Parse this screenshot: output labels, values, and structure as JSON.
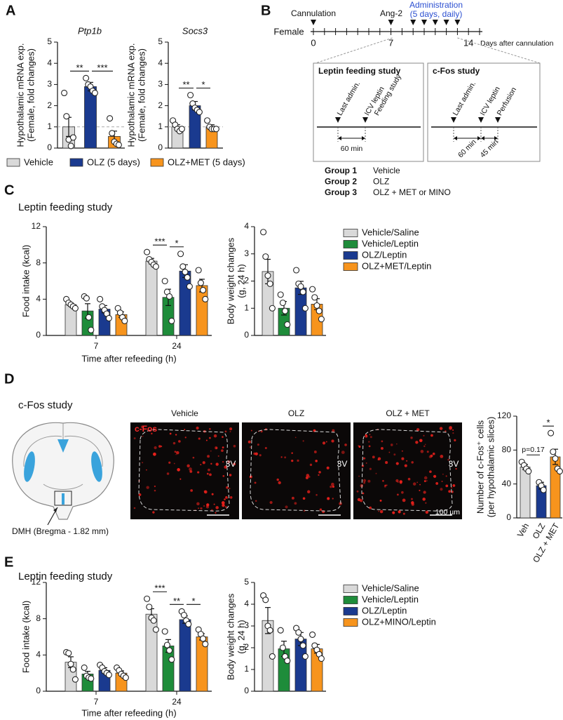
{
  "panel_labels": [
    "A",
    "B",
    "C",
    "D",
    "E"
  ],
  "panel_a": {
    "legend": [
      {
        "name": "Vehicle",
        "color": "#d9d9d9"
      },
      {
        "name": "OLZ (5 days)",
        "color": "#1a3a8f"
      },
      {
        "name": "OLZ+MET (5 days)",
        "color": "#f7941d"
      }
    ]
  },
  "panel_b": {
    "sex": "Female",
    "cannulation": "Cannulation",
    "ang2": "Ang-2",
    "administration": [
      "Administration",
      "(5 days, daily)"
    ],
    "day_labels": [
      "0",
      "7",
      "14"
    ],
    "day_axis": "Days after cannulation",
    "studies": [
      {
        "title": "Leptin feeding study",
        "events": [
          "Last admin.",
          "ICV leptin",
          "Feeding study"
        ],
        "intervals": [
          "60 min"
        ]
      },
      {
        "title": "c-Fos study",
        "events": [
          "Last admin.",
          "ICV leptin",
          "Perfusion"
        ],
        "intervals": [
          "60 min",
          "45 min"
        ]
      }
    ],
    "groups": [
      {
        "group": "Group 1",
        "treatment": "Vehicle"
      },
      {
        "group": "Group 2",
        "treatment": "OLZ"
      },
      {
        "group": "Group 3",
        "treatment": "OLZ + MET or MINO"
      }
    ]
  },
  "panel_c": {
    "title": "Leptin feeding study"
  },
  "panel_d": {
    "title": "c-Fos study",
    "region": "DMH (Bregma - 1.82 mm)",
    "images": [
      {
        "title": "Vehicle",
        "landmark": "3V"
      },
      {
        "title": "OLZ",
        "landmark": "3V"
      },
      {
        "title": "OLZ + MET",
        "landmark": "3V"
      }
    ],
    "stain": "c-Fos",
    "scale": "100 µm"
  },
  "panel_e": {
    "title": "Leptin feeding study"
  },
  "chart_data": [
    {
      "type": "bar",
      "title": "Ptp1b",
      "ylabel": [
        "Hypothalamic mRNA exp.",
        "(Female, fold changes)"
      ],
      "values": [
        1.0,
        2.9,
        0.55
      ],
      "errors": [
        0.45,
        0.2,
        0.25
      ],
      "points": [
        [
          2.6,
          1.5,
          0.4,
          0.1,
          0.5
        ],
        [
          3.3,
          3.0,
          2.9,
          2.7,
          2.6
        ],
        [
          1.4,
          0.7,
          0.3,
          0.2,
          0.15
        ]
      ],
      "colors": [
        "#d9d9d9",
        "#1a3a8f",
        "#f7941d"
      ],
      "ylim": [
        0,
        5
      ],
      "yticks": [
        0,
        1,
        2,
        3,
        4,
        5
      ],
      "reference": 1,
      "significance": [
        {
          "text": "**",
          "pair": [
            0,
            1
          ]
        },
        {
          "text": "***",
          "pair": [
            1,
            2
          ]
        }
      ]
    },
    {
      "type": "bar",
      "title": "Socs3",
      "ylabel": [
        "Hypothalamic mRNA exp.",
        "(Female, fold changes)"
      ],
      "values": [
        1.0,
        2.0,
        1.0
      ],
      "errors": [
        0.1,
        0.2,
        0.1
      ],
      "points": [
        [
          1.3,
          1.1,
          0.9,
          0.8,
          0.9
        ],
        [
          2.5,
          2.1,
          1.9,
          1.8,
          1.7
        ],
        [
          1.3,
          1.0,
          0.9,
          0.9,
          0.9
        ]
      ],
      "colors": [
        "#d9d9d9",
        "#1a3a8f",
        "#f7941d"
      ],
      "ylim": [
        0,
        5
      ],
      "yticks": [
        0,
        1,
        2,
        3,
        4,
        5
      ],
      "reference": 1,
      "significance": [
        {
          "text": "**",
          "pair": [
            0,
            1
          ]
        },
        {
          "text": "*",
          "pair": [
            1,
            2
          ]
        }
      ]
    },
    {
      "type": "grouped_bar",
      "categories": [
        "7",
        "24"
      ],
      "xlabel": "Time after refeeding (h)",
      "ylabel": [
        "Food intake (kcal)"
      ],
      "ylim": [
        0,
        12
      ],
      "yticks": [
        0,
        4,
        8,
        12
      ],
      "series": [
        {
          "name": "Vehicle/Saline",
          "color": "#d9d9d9",
          "values": [
            3.4,
            8.2
          ],
          "errors": [
            0.18,
            0.3
          ],
          "points": [
            [
              4.0,
              3.6,
              3.4,
              3.2,
              3.0
            ],
            [
              9.2,
              8.4,
              8.1,
              7.8,
              7.6
            ]
          ]
        },
        {
          "name": "Vehicle/Leptin",
          "color": "#1e8c3a",
          "values": [
            2.7,
            4.2
          ],
          "errors": [
            0.8,
            0.9
          ],
          "points": [
            [
              4.3,
              4.1,
              2.0,
              0.6
            ],
            [
              6.0,
              4.8,
              4.3,
              1.6
            ]
          ]
        },
        {
          "name": "OLZ/Leptin",
          "color": "#1a3a8f",
          "values": [
            2.9,
            7.1
          ],
          "errors": [
            0.4,
            0.7
          ],
          "points": [
            [
              4.0,
              3.2,
              2.8,
              2.4,
              1.9
            ],
            [
              9.0,
              7.6,
              7.0,
              6.4,
              5.4
            ]
          ]
        },
        {
          "name": "OLZ+MET/Leptin",
          "color": "#f7941d",
          "values": [
            2.3,
            5.5
          ],
          "errors": [
            0.3,
            0.7
          ],
          "points": [
            [
              3.0,
              2.5,
              2.0,
              1.6
            ],
            [
              7.2,
              5.8,
              5.0,
              4.0
            ]
          ]
        }
      ],
      "significance": [
        {
          "text": "***",
          "category": 1,
          "pair": [
            0,
            1
          ]
        },
        {
          "text": "*",
          "category": 1,
          "pair": [
            1,
            2
          ]
        }
      ]
    },
    {
      "type": "bar",
      "ylabel": [
        "Body weight changes",
        "(g, 24 h)"
      ],
      "values": [
        2.35,
        1.0,
        1.75,
        1.15
      ],
      "errors": [
        0.45,
        0.25,
        0.24,
        0.2
      ],
      "points": [
        [
          3.8,
          2.9,
          2.2,
          1.9,
          1.0
        ],
        [
          1.5,
          1.2,
          0.9,
          0.4
        ],
        [
          2.4,
          1.9,
          1.8,
          1.6,
          1.0
        ],
        [
          1.7,
          1.4,
          1.1,
          0.9,
          0.6
        ]
      ],
      "colors": [
        "#d9d9d9",
        "#1e8c3a",
        "#1a3a8f",
        "#f7941d"
      ],
      "ylim": [
        0,
        4
      ],
      "yticks": [
        0,
        1,
        2,
        3,
        4
      ]
    },
    {
      "type": "bar",
      "categories": [
        "Veh",
        "OLZ",
        "OLZ + MET"
      ],
      "ylabel": [
        "Number of c-Fos⁺ cells",
        "(per hypothalamic slices)"
      ],
      "values": [
        60,
        38,
        72
      ],
      "errors": [
        3,
        4,
        9
      ],
      "points": [
        [
          66,
          62,
          58,
          55
        ],
        [
          42,
          38,
          33
        ],
        [
          100,
          78,
          70,
          58,
          55
        ]
      ],
      "colors": [
        "#d9d9d9",
        "#1a3a8f",
        "#f7941d"
      ],
      "ylim": [
        0,
        120
      ],
      "yticks": [
        0,
        40,
        80,
        120
      ],
      "significance": [
        {
          "text": "p=0.17",
          "pair": [
            0,
            1
          ]
        },
        {
          "text": "*",
          "pair": [
            1,
            2
          ]
        }
      ]
    },
    {
      "type": "grouped_bar",
      "categories": [
        "7",
        "24"
      ],
      "xlabel": "Time after refeeding (h)",
      "ylabel": [
        "Food intake (kcal)"
      ],
      "ylim": [
        0,
        12
      ],
      "yticks": [
        0,
        4,
        8,
        12
      ],
      "series": [
        {
          "name": "Vehicle/Saline",
          "color": "#d9d9d9",
          "values": [
            3.2,
            8.5
          ],
          "errors": [
            0.6,
            0.6
          ],
          "points": [
            [
              4.3,
              4.2,
              3.0,
              2.4,
              1.3
            ],
            [
              10.2,
              9.3,
              8.1,
              7.8,
              6.8
            ]
          ]
        },
        {
          "name": "Vehicle/Leptin",
          "color": "#1e8c3a",
          "values": [
            1.9,
            5.0
          ],
          "errors": [
            0.3,
            0.7
          ],
          "points": [
            [
              2.6,
              1.7,
              1.5,
              1.4
            ],
            [
              6.6,
              5.1,
              4.5,
              3.5
            ]
          ]
        },
        {
          "name": "OLZ/Leptin",
          "color": "#1a3a8f",
          "values": [
            2.3,
            7.9
          ],
          "errors": [
            0.3,
            0.4
          ],
          "points": [
            [
              2.9,
              2.6,
              2.2,
              2.0,
              1.8
            ],
            [
              8.8,
              8.4,
              7.8,
              7.4
            ]
          ]
        },
        {
          "name": "OLZ+MINO/Leptin",
          "color": "#f7941d",
          "values": [
            2.0,
            6.0
          ],
          "errors": [
            0.25,
            0.35
          ],
          "points": [
            [
              2.6,
              2.3,
              1.9,
              1.7,
              1.5
            ],
            [
              6.8,
              6.3,
              5.8,
              5.2
            ]
          ]
        }
      ],
      "significance": [
        {
          "text": "***",
          "category": 1,
          "pair": [
            0,
            1
          ]
        },
        {
          "text": "**",
          "category": 1,
          "pair": [
            1,
            2
          ]
        },
        {
          "text": "*",
          "category": 1,
          "pair": [
            2,
            3
          ]
        }
      ]
    },
    {
      "type": "bar",
      "ylabel": [
        "Body weight changes",
        "(g, 24 h)"
      ],
      "values": [
        3.25,
        1.95,
        2.4,
        1.95
      ],
      "errors": [
        0.6,
        0.35,
        0.3,
        0.2
      ],
      "points": [
        [
          4.4,
          4.2,
          3.0,
          2.8,
          1.6
        ],
        [
          2.8,
          2.0,
          1.6,
          1.4
        ],
        [
          2.9,
          2.7,
          2.4,
          2.1,
          1.6
        ],
        [
          2.6,
          2.1,
          1.9,
          1.7,
          1.5
        ]
      ],
      "colors": [
        "#d9d9d9",
        "#1e8c3a",
        "#1a3a8f",
        "#f7941d"
      ],
      "ylim": [
        0,
        5
      ],
      "yticks": [
        0,
        1,
        2,
        3,
        4,
        5
      ]
    }
  ]
}
